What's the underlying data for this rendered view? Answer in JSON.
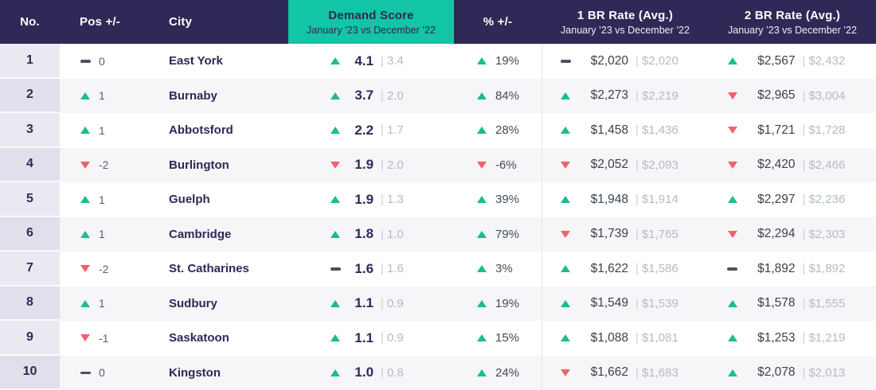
{
  "colors": {
    "header_bg": "#2e2957",
    "accent_teal": "#12c5a4",
    "up_green": "#1bbc92",
    "down_red": "#f4606b"
  },
  "table": {
    "columns": {
      "no": "No.",
      "pos": "Pos +/-",
      "city": "City",
      "demand": {
        "title": "Demand Score",
        "subtitle": "January ’23 vs December ’22"
      },
      "pct": "% +/-",
      "br1": {
        "title": "1 BR Rate (Avg.)",
        "subtitle": "January ’23 vs December ’22"
      },
      "br2": {
        "title": "2 BR Rate (Avg.)",
        "subtitle": "January ’23 vs December ’22"
      }
    },
    "rows": [
      {
        "no": "1",
        "pos": {
          "dir": "flat",
          "value": "0"
        },
        "city": "East York",
        "demand": {
          "dir": "up",
          "value": "4.1",
          "prev": "3.4"
        },
        "pct": {
          "dir": "up",
          "value": "19%"
        },
        "br1": {
          "dir": "flat",
          "value": "$2,020",
          "prev": "$2,020"
        },
        "br2": {
          "dir": "up",
          "value": "$2,567",
          "prev": "$2,432"
        }
      },
      {
        "no": "2",
        "pos": {
          "dir": "up",
          "value": "1"
        },
        "city": "Burnaby",
        "demand": {
          "dir": "up",
          "value": "3.7",
          "prev": "2.0"
        },
        "pct": {
          "dir": "up",
          "value": "84%"
        },
        "br1": {
          "dir": "up",
          "value": "$2,273",
          "prev": "$2,219"
        },
        "br2": {
          "dir": "down",
          "value": "$2,965",
          "prev": "$3,004"
        }
      },
      {
        "no": "3",
        "pos": {
          "dir": "up",
          "value": "1"
        },
        "city": "Abbotsford",
        "demand": {
          "dir": "up",
          "value": "2.2",
          "prev": "1.7"
        },
        "pct": {
          "dir": "up",
          "value": "28%"
        },
        "br1": {
          "dir": "up",
          "value": "$1,458",
          "prev": "$1,436"
        },
        "br2": {
          "dir": "down",
          "value": "$1,721",
          "prev": "$1,728"
        }
      },
      {
        "no": "4",
        "pos": {
          "dir": "down",
          "value": "-2"
        },
        "city": "Burlington",
        "demand": {
          "dir": "down",
          "value": "1.9",
          "prev": "2.0"
        },
        "pct": {
          "dir": "down",
          "value": "-6%"
        },
        "br1": {
          "dir": "down",
          "value": "$2,052",
          "prev": "$2,093"
        },
        "br2": {
          "dir": "down",
          "value": "$2,420",
          "prev": "$2,466"
        }
      },
      {
        "no": "5",
        "pos": {
          "dir": "up",
          "value": "1"
        },
        "city": "Guelph",
        "demand": {
          "dir": "up",
          "value": "1.9",
          "prev": "1.3"
        },
        "pct": {
          "dir": "up",
          "value": "39%"
        },
        "br1": {
          "dir": "up",
          "value": "$1,948",
          "prev": "$1,914"
        },
        "br2": {
          "dir": "up",
          "value": "$2,297",
          "prev": "$2,236"
        }
      },
      {
        "no": "6",
        "pos": {
          "dir": "up",
          "value": "1"
        },
        "city": "Cambridge",
        "demand": {
          "dir": "up",
          "value": "1.8",
          "prev": "1.0"
        },
        "pct": {
          "dir": "up",
          "value": "79%"
        },
        "br1": {
          "dir": "down",
          "value": "$1,739",
          "prev": "$1,765"
        },
        "br2": {
          "dir": "down",
          "value": "$2,294",
          "prev": "$2,303"
        }
      },
      {
        "no": "7",
        "pos": {
          "dir": "down",
          "value": "-2"
        },
        "city": "St. Catharines",
        "demand": {
          "dir": "flat",
          "value": "1.6",
          "prev": "1.6"
        },
        "pct": {
          "dir": "up",
          "value": "3%"
        },
        "br1": {
          "dir": "up",
          "value": "$1,622",
          "prev": "$1,586"
        },
        "br2": {
          "dir": "flat",
          "value": "$1,892",
          "prev": "$1,892"
        }
      },
      {
        "no": "8",
        "pos": {
          "dir": "up",
          "value": "1"
        },
        "city": "Sudbury",
        "demand": {
          "dir": "up",
          "value": "1.1",
          "prev": "0.9"
        },
        "pct": {
          "dir": "up",
          "value": "19%"
        },
        "br1": {
          "dir": "up",
          "value": "$1,549",
          "prev": "$1,539"
        },
        "br2": {
          "dir": "up",
          "value": "$1,578",
          "prev": "$1,555"
        }
      },
      {
        "no": "9",
        "pos": {
          "dir": "down",
          "value": "-1"
        },
        "city": "Saskatoon",
        "demand": {
          "dir": "up",
          "value": "1.1",
          "prev": "0.9"
        },
        "pct": {
          "dir": "up",
          "value": "15%"
        },
        "br1": {
          "dir": "up",
          "value": "$1,088",
          "prev": "$1,081"
        },
        "br2": {
          "dir": "up",
          "value": "$1,253",
          "prev": "$1,219"
        }
      },
      {
        "no": "10",
        "pos": {
          "dir": "flat",
          "value": "0"
        },
        "city": "Kingston",
        "demand": {
          "dir": "up",
          "value": "1.0",
          "prev": "0.8"
        },
        "pct": {
          "dir": "up",
          "value": "24%"
        },
        "br1": {
          "dir": "down",
          "value": "$1,662",
          "prev": "$1,683"
        },
        "br2": {
          "dir": "up",
          "value": "$2,078",
          "prev": "$2,013"
        }
      }
    ]
  }
}
